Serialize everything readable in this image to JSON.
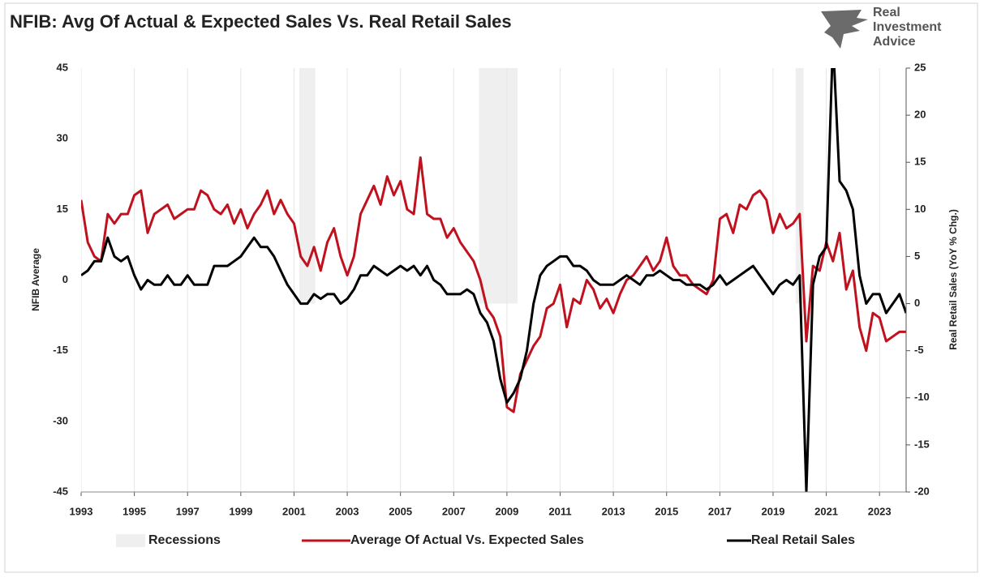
{
  "chart_data": {
    "type": "line",
    "title": "NFIB: Avg Of Actual & Expected Sales Vs. Real Retail Sales",
    "ylabel": "NFIB Average",
    "y2label": "Real Retail Sales (YoY % Chg.)",
    "xlim": [
      1993,
      2024
    ],
    "xticks": [
      1993,
      1995,
      1997,
      1999,
      2001,
      2003,
      2005,
      2007,
      2009,
      2011,
      2013,
      2015,
      2017,
      2019,
      2021,
      2023
    ],
    "ylim": [
      -45,
      45
    ],
    "yticks": [
      -45,
      -30,
      -15,
      0,
      15,
      30,
      45
    ],
    "y2lim": [
      -20,
      25
    ],
    "y2ticks": [
      -20,
      -15,
      -10,
      -5,
      0,
      5,
      10,
      15,
      20,
      25
    ],
    "grid": true,
    "recessions": {
      "name": "Recessions",
      "color": "#efefef",
      "ranges": [
        [
          2001.2,
          2001.8
        ],
        [
          2007.95,
          2009.4
        ],
        [
          2019.85,
          2020.15
        ]
      ]
    },
    "x": [
      1993.0,
      1993.25,
      1993.5,
      1993.75,
      1994.0,
      1994.25,
      1994.5,
      1994.75,
      1995.0,
      1995.25,
      1995.5,
      1995.75,
      1996.0,
      1996.25,
      1996.5,
      1996.75,
      1997.0,
      1997.25,
      1997.5,
      1997.75,
      1998.0,
      1998.25,
      1998.5,
      1998.75,
      1999.0,
      1999.25,
      1999.5,
      1999.75,
      2000.0,
      2000.25,
      2000.5,
      2000.75,
      2001.0,
      2001.25,
      2001.5,
      2001.75,
      2002.0,
      2002.25,
      2002.5,
      2002.75,
      2003.0,
      2003.25,
      2003.5,
      2003.75,
      2004.0,
      2004.25,
      2004.5,
      2004.75,
      2005.0,
      2005.25,
      2005.5,
      2005.75,
      2006.0,
      2006.25,
      2006.5,
      2006.75,
      2007.0,
      2007.25,
      2007.5,
      2007.75,
      2008.0,
      2008.25,
      2008.5,
      2008.75,
      2009.0,
      2009.25,
      2009.5,
      2009.75,
      2010.0,
      2010.25,
      2010.5,
      2010.75,
      2011.0,
      2011.25,
      2011.5,
      2011.75,
      2012.0,
      2012.25,
      2012.5,
      2012.75,
      2013.0,
      2013.25,
      2013.5,
      2013.75,
      2014.0,
      2014.25,
      2014.5,
      2014.75,
      2015.0,
      2015.25,
      2015.5,
      2015.75,
      2016.0,
      2016.25,
      2016.5,
      2016.75,
      2017.0,
      2017.25,
      2017.5,
      2017.75,
      2018.0,
      2018.25,
      2018.5,
      2018.75,
      2019.0,
      2019.25,
      2019.5,
      2019.75,
      2020.0,
      2020.25,
      2020.5,
      2020.75,
      2021.0,
      2021.25,
      2021.5,
      2021.75,
      2022.0,
      2022.25,
      2022.5,
      2022.75,
      2023.0,
      2023.25,
      2023.5,
      2023.75,
      2024.0
    ],
    "series": [
      {
        "name": "Average Of Actual Vs. Expected Sales",
        "color": "#c0111f",
        "axis": "y",
        "values": [
          17,
          8,
          5,
          4,
          14,
          12,
          14,
          14,
          18,
          19,
          10,
          14,
          15,
          16,
          13,
          14,
          15,
          15,
          19,
          18,
          15,
          14,
          16,
          12,
          15,
          11,
          14,
          16,
          19,
          14,
          17,
          14,
          12,
          5,
          3,
          7,
          2,
          8,
          11,
          5,
          1,
          5,
          14,
          17,
          20,
          16,
          22,
          18,
          21,
          15,
          14,
          26,
          14,
          13,
          13,
          9,
          11,
          8,
          6,
          4,
          0,
          -6,
          -8,
          -12,
          -27,
          -28,
          -20,
          -17,
          -14,
          -12,
          -6,
          -5,
          -1,
          -10,
          -4,
          -5,
          0,
          -2,
          -6,
          -4,
          -7,
          -3,
          0,
          1,
          3,
          5,
          2,
          4,
          9,
          3,
          1,
          1,
          -1,
          -2,
          -3,
          0,
          13,
          14,
          10,
          16,
          15,
          18,
          19,
          17,
          10,
          14,
          11,
          12,
          14,
          -13,
          3,
          2,
          8,
          4,
          10,
          -2,
          2,
          -10,
          -15,
          -7,
          -8,
          -13,
          -12,
          -11,
          -11
        ]
      },
      {
        "name": "Real Retail Sales",
        "color": "#000000",
        "axis": "y2",
        "values": [
          3,
          3.5,
          4.5,
          4.5,
          7,
          5,
          4.5,
          5,
          3,
          1.5,
          2.5,
          2,
          2,
          3,
          2,
          2,
          3,
          2,
          2,
          2,
          4,
          4,
          4,
          4.5,
          5,
          6,
          7,
          6,
          6,
          5,
          3.5,
          2,
          1,
          0,
          0,
          1,
          0.5,
          1,
          1,
          0,
          0.5,
          1.5,
          3,
          3,
          4,
          3.5,
          3,
          3.5,
          4,
          3.5,
          4,
          3,
          4,
          2.5,
          2,
          1,
          1,
          1,
          1.5,
          1,
          -1,
          -2,
          -4,
          -8,
          -10.5,
          -9.5,
          -8,
          -5,
          0,
          3,
          4,
          4.5,
          5,
          5,
          4,
          4,
          3.5,
          2.5,
          2,
          2,
          2,
          2.5,
          3,
          2.5,
          2,
          3,
          3,
          3.5,
          3,
          2.5,
          2.5,
          2,
          2,
          2,
          1.5,
          2,
          3,
          2,
          2.5,
          3,
          3.5,
          4,
          3,
          2,
          1,
          2,
          2.5,
          2,
          3,
          -20,
          2,
          5,
          6,
          28,
          13,
          12,
          10,
          3,
          0,
          1,
          1,
          -1,
          0,
          1,
          -1
        ]
      }
    ]
  },
  "logo": [
    "Real",
    "Investment",
    "Advice"
  ]
}
